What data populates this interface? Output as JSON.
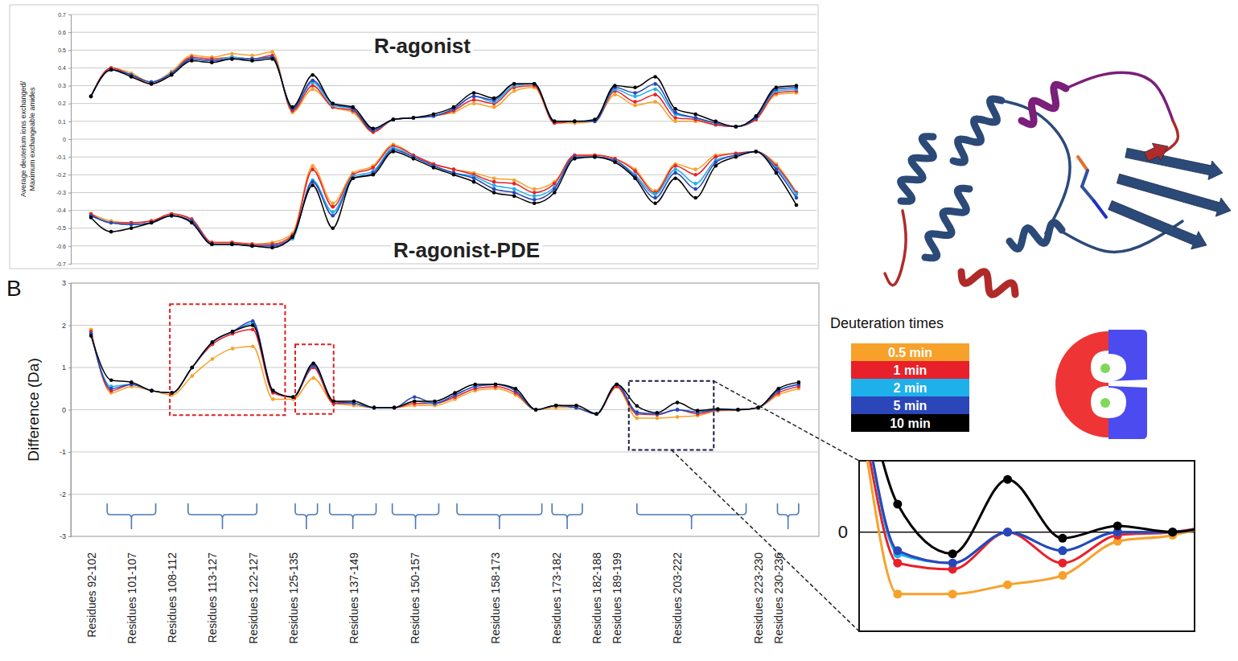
{
  "chart_data": [
    {
      "type": "line",
      "y_label": "Average deuterium ions exchanged/ Maximum exchangeable amides",
      "ylim": [
        -0.7,
        0.7
      ],
      "yticks": [
        -0.7,
        -0.6,
        -0.5,
        -0.4,
        -0.3,
        -0.2,
        -0.1,
        0,
        0.1,
        0.2,
        0.3,
        0.4,
        0.5,
        0.6,
        0.7
      ],
      "grid": true,
      "tick_labels": "y",
      "marker": "circle",
      "panels": [
        {
          "title": "R-agonist",
          "series": [
            {
              "name": "0.5 min",
              "color": "#f7a12b",
              "values": [
                0.24,
                0.4,
                0.37,
                0.32,
                0.38,
                0.47,
                0.46,
                0.48,
                0.47,
                0.49,
                0.15,
                0.28,
                0.18,
                0.15,
                0.04,
                0.11,
                0.12,
                0.13,
                0.15,
                0.2,
                0.18,
                0.27,
                0.29,
                0.09,
                0.09,
                0.1,
                0.25,
                0.19,
                0.21,
                0.1,
                0.1,
                0.08,
                0.07,
                0.11,
                0.25,
                0.26
              ]
            },
            {
              "name": "1 min",
              "color": "#e8202a",
              "values": [
                0.24,
                0.4,
                0.36,
                0.31,
                0.37,
                0.46,
                0.45,
                0.46,
                0.45,
                0.47,
                0.16,
                0.3,
                0.18,
                0.16,
                0.04,
                0.11,
                0.12,
                0.13,
                0.16,
                0.22,
                0.2,
                0.29,
                0.3,
                0.09,
                0.1,
                0.1,
                0.27,
                0.21,
                0.25,
                0.12,
                0.11,
                0.08,
                0.07,
                0.11,
                0.26,
                0.27
              ]
            },
            {
              "name": "2 min",
              "color": "#1eb0ea",
              "values": [
                0.24,
                0.39,
                0.36,
                0.32,
                0.37,
                0.45,
                0.44,
                0.46,
                0.45,
                0.46,
                0.17,
                0.32,
                0.19,
                0.17,
                0.05,
                0.11,
                0.12,
                0.13,
                0.17,
                0.24,
                0.21,
                0.3,
                0.31,
                0.1,
                0.1,
                0.1,
                0.28,
                0.24,
                0.28,
                0.14,
                0.12,
                0.09,
                0.07,
                0.12,
                0.27,
                0.28
              ]
            },
            {
              "name": "5 min",
              "color": "#2a46b8",
              "values": [
                0.24,
                0.39,
                0.36,
                0.32,
                0.37,
                0.45,
                0.44,
                0.45,
                0.45,
                0.46,
                0.17,
                0.33,
                0.2,
                0.17,
                0.05,
                0.11,
                0.12,
                0.13,
                0.17,
                0.24,
                0.22,
                0.31,
                0.31,
                0.1,
                0.1,
                0.1,
                0.29,
                0.26,
                0.31,
                0.15,
                0.12,
                0.09,
                0.07,
                0.12,
                0.28,
                0.29
              ]
            },
            {
              "name": "10 min",
              "color": "#000000",
              "values": [
                0.24,
                0.39,
                0.35,
                0.31,
                0.36,
                0.44,
                0.43,
                0.45,
                0.44,
                0.45,
                0.18,
                0.36,
                0.2,
                0.18,
                0.06,
                0.11,
                0.12,
                0.14,
                0.18,
                0.26,
                0.23,
                0.31,
                0.31,
                0.1,
                0.1,
                0.11,
                0.3,
                0.29,
                0.35,
                0.17,
                0.14,
                0.1,
                0.07,
                0.13,
                0.29,
                0.3
              ]
            }
          ]
        },
        {
          "title": "R-agonist-PDE",
          "series": [
            {
              "name": "0.5 min",
              "color": "#f7a12b",
              "values": [
                -0.42,
                -0.46,
                -0.47,
                -0.46,
                -0.42,
                -0.45,
                -0.58,
                -0.58,
                -0.59,
                -0.58,
                -0.53,
                -0.15,
                -0.36,
                -0.19,
                -0.15,
                -0.03,
                -0.09,
                -0.14,
                -0.17,
                -0.19,
                -0.22,
                -0.23,
                -0.28,
                -0.24,
                -0.09,
                -0.09,
                -0.11,
                -0.17,
                -0.29,
                -0.14,
                -0.17,
                -0.09,
                -0.08,
                -0.07,
                -0.14,
                -0.3
              ]
            },
            {
              "name": "1 min",
              "color": "#e8202a",
              "values": [
                -0.42,
                -0.47,
                -0.47,
                -0.46,
                -0.42,
                -0.45,
                -0.58,
                -0.58,
                -0.59,
                -0.59,
                -0.54,
                -0.17,
                -0.38,
                -0.2,
                -0.16,
                -0.04,
                -0.09,
                -0.14,
                -0.17,
                -0.2,
                -0.24,
                -0.25,
                -0.3,
                -0.25,
                -0.09,
                -0.09,
                -0.11,
                -0.18,
                -0.3,
                -0.15,
                -0.2,
                -0.1,
                -0.08,
                -0.07,
                -0.15,
                -0.3
              ]
            },
            {
              "name": "2 min",
              "color": "#1eb0ea",
              "values": [
                -0.43,
                -0.47,
                -0.48,
                -0.47,
                -0.43,
                -0.46,
                -0.59,
                -0.59,
                -0.6,
                -0.6,
                -0.56,
                -0.23,
                -0.41,
                -0.21,
                -0.18,
                -0.05,
                -0.1,
                -0.15,
                -0.19,
                -0.21,
                -0.26,
                -0.28,
                -0.32,
                -0.27,
                -0.1,
                -0.1,
                -0.12,
                -0.2,
                -0.31,
                -0.17,
                -0.25,
                -0.12,
                -0.09,
                -0.07,
                -0.16,
                -0.31
              ]
            },
            {
              "name": "5 min",
              "color": "#2a46b8",
              "values": [
                -0.43,
                -0.47,
                -0.48,
                -0.47,
                -0.43,
                -0.46,
                -0.59,
                -0.59,
                -0.6,
                -0.6,
                -0.55,
                -0.24,
                -0.43,
                -0.22,
                -0.19,
                -0.06,
                -0.1,
                -0.15,
                -0.19,
                -0.22,
                -0.28,
                -0.3,
                -0.34,
                -0.28,
                -0.1,
                -0.1,
                -0.12,
                -0.21,
                -0.33,
                -0.19,
                -0.28,
                -0.13,
                -0.09,
                -0.07,
                -0.17,
                -0.33
              ]
            },
            {
              "name": "10 min",
              "color": "#000000",
              "values": [
                -0.44,
                -0.52,
                -0.5,
                -0.47,
                -0.43,
                -0.47,
                -0.59,
                -0.59,
                -0.6,
                -0.61,
                -0.55,
                -0.26,
                -0.5,
                -0.22,
                -0.2,
                -0.07,
                -0.11,
                -0.16,
                -0.2,
                -0.24,
                -0.3,
                -0.32,
                -0.36,
                -0.3,
                -0.11,
                -0.1,
                -0.13,
                -0.22,
                -0.36,
                -0.22,
                -0.33,
                -0.15,
                -0.1,
                -0.07,
                -0.19,
                -0.37
              ]
            }
          ]
        }
      ]
    },
    {
      "type": "line",
      "panel_label": "B",
      "y_label": "Difference (Da)",
      "ylim": [
        -3,
        3
      ],
      "yticks": [
        -3,
        -2,
        -1,
        0,
        1,
        2,
        3
      ],
      "grid": true,
      "marker": "circle",
      "legend": "right",
      "legend_title": "Deuteration times",
      "categories": [
        "Residues 92-102",
        null,
        "Residues 101-107",
        null,
        "Residues 108-112",
        null,
        "Residues 113-127",
        null,
        "Residues 122-127",
        null,
        "Residues 125-135",
        null,
        null,
        "Residues 137-149",
        null,
        null,
        "Residues 150-157",
        null,
        null,
        null,
        "Residues 158-173",
        null,
        null,
        "Residues 173-182",
        null,
        "Residues 182-188",
        "Residues 189-199",
        null,
        null,
        "Residues 203-222",
        null,
        null,
        null,
        "Residues 223-230",
        "Residues 230-236",
        null
      ],
      "series": [
        {
          "name": "0.5 min",
          "color": "#f7a12b",
          "values": [
            1.9,
            0.4,
            0.55,
            0.45,
            0.35,
            0.8,
            1.2,
            1.45,
            1.5,
            0.25,
            0.25,
            0.75,
            0.15,
            0.1,
            0.05,
            0.05,
            0.1,
            0.1,
            0.25,
            0.45,
            0.5,
            0.35,
            0.0,
            0.05,
            0.05,
            -0.1,
            0.55,
            -0.2,
            -0.2,
            -0.17,
            -0.14,
            -0.03,
            -0.01,
            0.05,
            0.35,
            0.5
          ]
        },
        {
          "name": "1 min",
          "color": "#e8202a",
          "values": [
            1.85,
            0.45,
            0.6,
            0.45,
            0.4,
            1.0,
            1.55,
            1.8,
            1.9,
            0.4,
            0.3,
            1.0,
            0.15,
            0.15,
            0.05,
            0.05,
            0.15,
            0.15,
            0.3,
            0.5,
            0.55,
            0.4,
            0.0,
            0.1,
            0.05,
            -0.1,
            0.55,
            -0.1,
            -0.12,
            0.0,
            -0.1,
            -0.01,
            0.0,
            0.05,
            0.4,
            0.55
          ]
        },
        {
          "name": "2 min",
          "color": "#1eb0ea",
          "values": [
            1.8,
            0.55,
            0.6,
            0.45,
            0.4,
            1.0,
            1.6,
            1.85,
            2.05,
            0.45,
            0.3,
            1.05,
            0.2,
            0.15,
            0.05,
            0.05,
            0.2,
            0.15,
            0.35,
            0.55,
            0.6,
            0.45,
            0.0,
            0.1,
            0.05,
            -0.1,
            0.6,
            -0.07,
            -0.1,
            0.0,
            -0.06,
            0.0,
            0.0,
            0.05,
            0.45,
            0.6
          ]
        },
        {
          "name": "5 min",
          "color": "#2a46b8",
          "values": [
            1.8,
            0.5,
            0.6,
            0.45,
            0.4,
            1.0,
            1.6,
            1.85,
            2.1,
            0.45,
            0.3,
            1.05,
            0.2,
            0.15,
            0.05,
            0.05,
            0.3,
            0.15,
            0.35,
            0.55,
            0.6,
            0.45,
            0.0,
            0.1,
            0.05,
            -0.1,
            0.6,
            -0.06,
            -0.1,
            0.0,
            -0.06,
            0.0,
            0.0,
            0.05,
            0.45,
            0.6
          ]
        },
        {
          "name": "10 min",
          "color": "#000000",
          "values": [
            1.75,
            0.7,
            0.65,
            0.45,
            0.4,
            1.0,
            1.6,
            1.85,
            2.0,
            0.45,
            0.3,
            1.1,
            0.2,
            0.2,
            0.05,
            0.05,
            0.2,
            0.2,
            0.4,
            0.6,
            0.6,
            0.5,
            0.0,
            0.1,
            0.1,
            -0.1,
            0.6,
            0.09,
            -0.07,
            0.17,
            -0.02,
            0.02,
            0.0,
            0.05,
            0.5,
            0.65
          ]
        }
      ],
      "highlights": [
        {
          "xlim": [
            3.9,
            9.6
          ],
          "ylim": [
            -0.13,
            2.5
          ],
          "color": "#e02020",
          "line_style": "dashed"
        },
        {
          "xlim": [
            10.1,
            12.0
          ],
          "ylim": [
            -0.1,
            1.55
          ],
          "color": "#e02020",
          "line_style": "dashed"
        },
        {
          "xlim": [
            26.6,
            30.8
          ],
          "ylim": [
            -0.95,
            0.68
          ],
          "color": "#1a1a4a",
          "line_style": "dashed"
        }
      ],
      "inset": {
        "xlim": [
          26.3,
          32.4
        ],
        "ylim": [
          -0.32,
          0.23
        ],
        "yticks": [
          0
        ]
      }
    }
  ]
}
